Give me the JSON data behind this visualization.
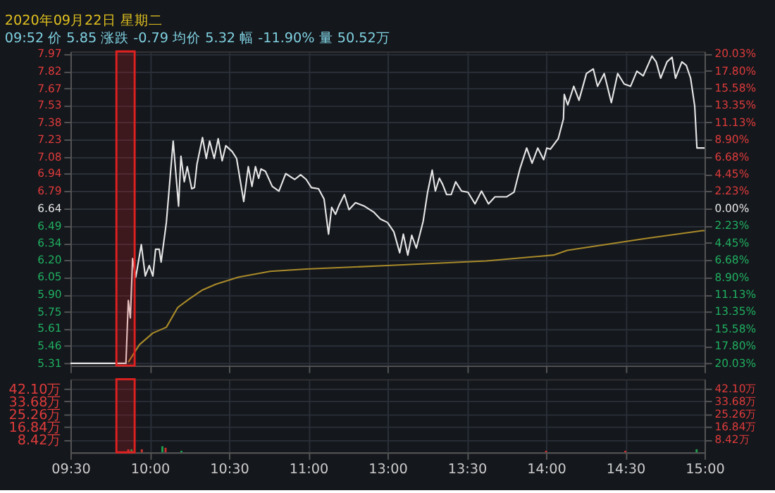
{
  "chart_data": [
    {
      "type": "line",
      "title": "2020年09月22日 星期二",
      "subtitle": "09:52 价 5.85 涨跌 -0.79 均价 5.32 幅 -11.90% 量 50.52万",
      "xlim": [
        9.5,
        11.5
      ],
      "xticks": [
        {
          "value": 9.5,
          "label": null
        },
        {
          "value": 10,
          "label": null
        },
        {
          "value": 10.5,
          "label": null
        },
        {
          "value": 11,
          "label": null
        }
      ],
      "ylim": [
        5.29,
        7.99
      ],
      "yticks": [
        7.97,
        7.82,
        7.67,
        7.53,
        7.38,
        7.23,
        7.08,
        6.94,
        6.79,
        6.64,
        6.49,
        6.34,
        {
          "value": 6.2,
          "label": "6.20"
        },
        6.05,
        {
          "value": 5.9,
          "label": "5.90"
        },
        5.75,
        5.61,
        5.46,
        5.31
      ],
      "grid": true,
      "tick_labels": "y",
      "bands": [
        {
          "axis": "x",
          "from": 9.79,
          "to": 9.905,
          "color": "#e02020"
        }
      ],
      "series": [
        {
          "color": "#e6e6e6",
          "x": [
            9.5,
            9.85,
            9.865,
            9.878,
            9.892,
            9.912,
            9.947,
            9.972,
            9.997,
            10.02,
            10.037,
            10.06,
            10.072,
            10.105,
            10.148,
            10.182,
            10.197,
            10.218,
            10.237,
            10.265,
            10.282,
            10.298,
            10.333,
            10.357,
            10.378,
            10.407,
            10.432,
            10.457,
            10.48,
            10.52,
            10.548,
            10.593,
            10.622,
            10.645,
            10.667,
            10.687,
            10.702,
            10.73,
            10.773,
            10.815,
            10.858,
            10.915,
            10.952,
            10.987,
            11.02,
            11.065,
            11.1,
            11.128,
            11.148,
            11.172,
            11.192,
            11.228,
            11.257,
            11.298,
            11.355,
            11.413,
            11.455,
            11.5
          ],
          "values": [
            5.31,
            5.31,
            5.85,
            5.7,
            6.21,
            6.05,
            6.33,
            6.06,
            6.15,
            6.06,
            6.29,
            6.29,
            6.18,
            6.52,
            7.22,
            6.66,
            7.09,
            6.87,
            7.0,
            6.81,
            6.82,
            7.02,
            7.25,
            7.07,
            7.22,
            7.07,
            7.24,
            7.05,
            7.18,
            7.13,
            7.07,
            6.7,
            7.0,
            6.83,
            7.0,
            6.9,
            6.98,
            6.96,
            6.83,
            6.79,
            6.94,
            6.89,
            6.93,
            6.89,
            6.82,
            6.81,
            6.72,
            6.42,
            6.65,
            6.59,
            6.66,
            6.76,
            6.63,
            6.69,
            6.66,
            6.61,
            6.55,
            6.52
          ]
        },
        {
          "color": "#a88a2a",
          "x": [
            9.865,
            9.935,
            10.02,
            10.105,
            10.177,
            10.247,
            10.333,
            10.418,
            10.56,
            10.76,
            10.987,
            11.5
          ],
          "values": [
            5.32,
            5.47,
            5.57,
            5.62,
            5.79,
            5.86,
            5.94,
            5.99,
            6.05,
            6.1,
            6.12,
            6.15
          ]
        }
      ]
    },
    {
      "type": "line",
      "xlim": [
        13,
        15
      ],
      "xticks": [
        {
          "value": 13,
          "label": null
        },
        {
          "value": 13.5,
          "label": null
        },
        {
          "value": 14,
          "label": null
        },
        {
          "value": 14.5,
          "label": null
        },
        {
          "value": 15,
          "label": null
        }
      ],
      "ylim": [
        5.29,
        7.99
      ],
      "yticks": [
        {
          "value": 7.97,
          "label": null
        },
        {
          "value": 7.82,
          "label": null
        },
        {
          "value": 7.67,
          "label": null
        },
        {
          "value": 7.53,
          "label": null
        },
        {
          "value": 7.38,
          "label": null
        },
        {
          "value": 7.23,
          "label": null
        },
        {
          "value": 7.08,
          "label": null
        },
        {
          "value": 6.94,
          "label": null
        },
        {
          "value": 6.79,
          "label": null
        },
        {
          "value": 6.64,
          "label": null
        },
        {
          "value": 6.49,
          "label": null
        },
        {
          "value": 6.34,
          "label": null
        },
        {
          "value": 6.2,
          "label": null
        },
        {
          "value": 6.05,
          "label": null
        },
        {
          "value": 5.9,
          "label": null
        },
        {
          "value": 5.75,
          "label": null
        },
        {
          "value": 5.61,
          "label": null
        },
        {
          "value": 5.46,
          "label": null
        },
        {
          "value": 5.31,
          "label": null
        }
      ],
      "y2lim": [
        -20.33,
        20.33
      ],
      "y2ticks": [
        {
          "value": 20.03,
          "label": "20.03%"
        },
        {
          "value": 17.8,
          "label": "17.80%"
        },
        {
          "value": 15.58,
          "label": "15.58%"
        },
        {
          "value": 13.35,
          "label": "13.35%"
        },
        {
          "value": 11.13,
          "label": "11.13%"
        },
        {
          "value": 8.9,
          "label": "8.90%"
        },
        {
          "value": 6.68,
          "label": "6.68%"
        },
        {
          "value": 4.45,
          "label": "4.45%"
        },
        {
          "value": 2.23,
          "label": "2.23%"
        },
        {
          "value": 0,
          "label": "0.00%"
        },
        {
          "value": -2.23,
          "label": "2.23%"
        },
        {
          "value": -4.45,
          "label": "4.45%"
        },
        {
          "value": -6.68,
          "label": "6.68%"
        },
        {
          "value": -8.9,
          "label": "8.90%"
        },
        {
          "value": -11.13,
          "label": "11.13%"
        },
        {
          "value": -13.35,
          "label": "13.35%"
        },
        {
          "value": -15.58,
          "label": "15.58%"
        },
        {
          "value": -17.8,
          "label": "17.80%"
        },
        {
          "value": -20.03,
          "label": "20.03%"
        }
      ],
      "grid": true,
      "tick_labels": false,
      "series": [
        {
          "color": "#e6e6e6",
          "x": [
            13,
            13.04,
            13.077,
            13.1,
            13.128,
            13.153,
            13.182,
            13.225,
            13.253,
            13.282,
            13.302,
            13.327,
            13.347,
            13.373,
            13.402,
            13.43,
            13.467,
            13.508,
            13.552,
            13.593,
            13.637,
            13.678,
            13.75,
            13.798,
            13.835,
            13.878,
            13.912,
            13.948,
            13.985,
            14.005,
            14.027,
            14.077,
            14.11,
            14.115,
            14.137,
            14.175,
            14.208,
            14.255,
            14.298,
            14.325,
            14.367,
            14.412,
            14.452,
            14.493,
            14.533,
            14.573,
            14.613,
            14.668,
            14.695,
            14.723,
            14.763,
            14.795,
            14.817,
            14.857,
            14.885,
            14.912,
            14.938,
            14.952,
            15
          ],
          "values": [
            6.52,
            6.44,
            6.26,
            6.42,
            6.24,
            6.41,
            6.3,
            6.53,
            6.78,
            6.97,
            6.79,
            6.9,
            6.85,
            6.76,
            6.76,
            6.87,
            6.79,
            6.78,
            6.68,
            6.79,
            6.68,
            6.74,
            6.74,
            6.78,
            6.98,
            7.16,
            7.03,
            7.16,
            7.06,
            7.16,
            7.15,
            7.24,
            7.41,
            7.62,
            7.53,
            7.69,
            7.57,
            7.8,
            7.84,
            7.69,
            7.8,
            7.55,
            7.8,
            7.71,
            7.69,
            7.82,
            7.78,
            7.95,
            7.9,
            7.76,
            7.9,
            7.94,
            7.76,
            7.9,
            7.87,
            7.76,
            7.52,
            7.16,
            7.16
          ]
        },
        {
          "color": "#a88a2a",
          "x": [
            13,
            13.623,
            14.048,
            14.133,
            14.617,
            14.985,
            15
          ],
          "values": [
            6.15,
            6.19,
            6.24,
            6.28,
            6.38,
            6.45,
            6.45
          ]
        }
      ]
    },
    {
      "type": "bar",
      "xlim": [
        9.5,
        11.5
      ],
      "xticks": [
        {
          "value": 9.5,
          "label": "09:30"
        },
        {
          "value": 10,
          "label": "10:00"
        },
        {
          "value": 10.5,
          "label": "10:30"
        },
        {
          "value": 11,
          "label": "11:00"
        }
      ],
      "ylim": [
        0,
        48.4
      ],
      "yticks": [
        {
          "value": 42.1,
          "label": "42.10万"
        },
        {
          "value": 33.68,
          "label": "33.68万"
        },
        {
          "value": 25.26,
          "label": "25.26万"
        },
        {
          "value": 16.84,
          "label": "16.84万"
        },
        {
          "value": 8.42,
          "label": "8.42万"
        }
      ],
      "grid": true,
      "bands": [
        {
          "axis": "x",
          "from": 9.79,
          "to": 9.905,
          "color": "#e02020"
        }
      ],
      "x": [
        9.865,
        9.885,
        9.95,
        10.08,
        10.1,
        10.2
      ],
      "values": [
        2,
        2,
        2,
        4,
        3,
        1
      ],
      "colors": [
        "#d03030",
        "#20a050",
        "#d03030",
        "#20a050",
        "#d03030",
        "#20a050"
      ]
    },
    {
      "type": "bar",
      "xlim": [
        13,
        15
      ],
      "xticks": [
        {
          "value": 13,
          "label": "13:00"
        },
        {
          "value": 13.5,
          "label": "13:30"
        },
        {
          "value": 14,
          "label": "14:00"
        },
        {
          "value": 14.5,
          "label": "14:30"
        },
        {
          "value": 15,
          "label": "15:00"
        }
      ],
      "ylim": [
        0,
        48.4
      ],
      "yticks": [
        {
          "value": 42.1,
          "label": null
        },
        {
          "value": 33.68,
          "label": null
        },
        {
          "value": 25.26,
          "label": null
        },
        {
          "value": 16.84,
          "label": null
        },
        {
          "value": 8.42,
          "label": null
        }
      ],
      "y2lim": [
        0,
        48.4
      ],
      "y2ticks": [
        {
          "value": 42.1,
          "label": "42.10万"
        },
        {
          "value": 33.68,
          "label": "33.68万"
        },
        {
          "value": 25.26,
          "label": "25.26万"
        },
        {
          "value": 16.84,
          "label": "16.84万"
        },
        {
          "value": 8.42,
          "label": "8.42万"
        }
      ],
      "grid": true,
      "tick_labels": "x",
      "x": [
        14.0,
        14.5,
        14.95
      ],
      "values": [
        1,
        1,
        2
      ],
      "colors": [
        "#d03030",
        "#d03030",
        "#20a050"
      ]
    }
  ]
}
